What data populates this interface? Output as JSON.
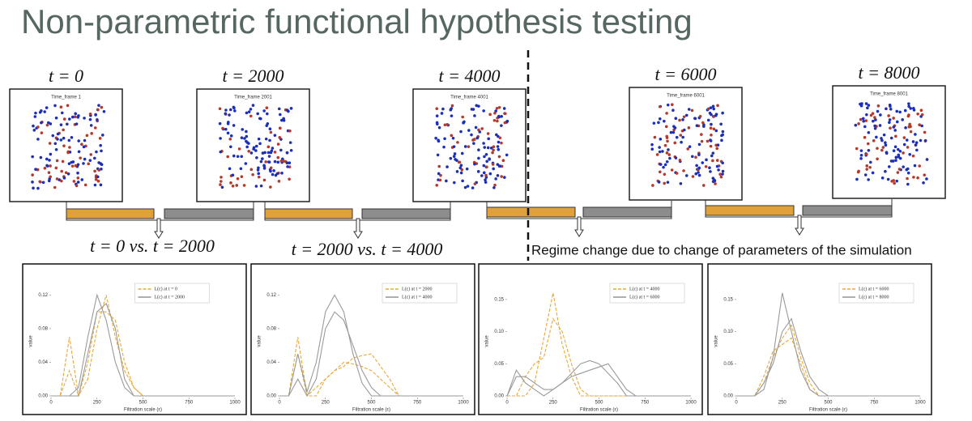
{
  "title": "Non-parametric functional hypothesis testing",
  "snapshots": [
    {
      "label": "t = 0",
      "subtitle": "Time_frame 1"
    },
    {
      "label": "t = 2000",
      "subtitle": "Time_frame 2001"
    },
    {
      "label": "t = 4000",
      "subtitle": "Time_frame 4001"
    },
    {
      "label": "t = 6000",
      "subtitle": "Time_frame 6001"
    },
    {
      "label": "t = 8000",
      "subtitle": "Time_frame 8001"
    }
  ],
  "comparisons": [
    "t = 0 vs. t = 2000",
    "t = 2000 vs. t = 4000"
  ],
  "regime_note": "Regime change due to change of parameters of the simulation",
  "chart_data": [
    {
      "type": "line",
      "xlabel": "Filtration scale (ε)",
      "ylabel": "value",
      "legend": "upper center",
      "x": [
        0,
        50,
        100,
        150,
        200,
        250,
        300,
        350,
        400,
        450,
        500,
        550,
        600,
        650,
        700,
        1000
      ],
      "xlim": [
        0,
        1000
      ],
      "xticks": [
        0,
        250,
        500,
        750,
        1000
      ],
      "ylim": [
        0,
        0.13
      ],
      "yticks": [
        {
          "value": 0,
          "label": "0.00"
        },
        {
          "value": 0.04,
          "label": "0.04"
        },
        {
          "value": 0.08,
          "label": "0.08"
        },
        {
          "value": 0.12,
          "label": "0.12"
        }
      ],
      "series": [
        {
          "name": "L(ε) at t = 0",
          "color": "#e8a838",
          "dashed": true,
          "curves": [
            [
              0,
              0,
              0.07,
              0,
              0.02,
              0.08,
              0.12,
              0.07,
              0.03,
              0.01,
              0,
              0,
              0,
              0,
              0,
              0
            ],
            [
              0,
              0,
              0.03,
              0,
              0.04,
              0.1,
              0.1,
              0.09,
              0.04,
              0.01,
              0,
              0,
              0,
              0,
              0,
              0
            ]
          ]
        },
        {
          "name": "L(ε) at t = 2000",
          "color": "#9a9a9a",
          "dashed": false,
          "curves": [
            [
              0,
              0,
              0,
              0.01,
              0.07,
              0.12,
              0.09,
              0.04,
              0.01,
              0,
              0,
              0,
              0,
              0,
              0,
              0
            ],
            [
              0,
              0,
              0,
              0,
              0.05,
              0.1,
              0.11,
              0.08,
              0.02,
              0,
              0,
              0,
              0,
              0,
              0,
              0
            ]
          ]
        }
      ]
    },
    {
      "type": "line",
      "xlabel": "Filtration scale (ε)",
      "ylabel": "value",
      "legend": "upper right",
      "x": [
        0,
        50,
        100,
        150,
        200,
        250,
        300,
        350,
        400,
        450,
        500,
        550,
        600,
        650,
        700,
        1000
      ],
      "xlim": [
        0,
        1000
      ],
      "xticks": [
        0,
        250,
        500,
        750,
        1000
      ],
      "ylim": [
        0,
        0.13
      ],
      "yticks": [
        {
          "value": 0,
          "label": "0.00"
        },
        {
          "value": 0.04,
          "label": "0.04"
        },
        {
          "value": 0.08,
          "label": "0.08"
        },
        {
          "value": 0.12,
          "label": "0.12"
        }
      ],
      "series": [
        {
          "name": "L(ε) at t = 2000",
          "color": "#e8a838",
          "dashed": true,
          "curves": [
            [
              0,
              0,
              0.07,
              0,
              0.01,
              0.02,
              0.03,
              0.035,
              0.045,
              0.048,
              0.05,
              0.035,
              0.02,
              0,
              0,
              0
            ],
            [
              0,
              0,
              0.05,
              0,
              0,
              0.02,
              0.03,
              0.04,
              0.038,
              0.035,
              0.03,
              0.02,
              0.01,
              0,
              0,
              0
            ]
          ]
        },
        {
          "name": "L(ε) at t = 4000",
          "color": "#9a9a9a",
          "dashed": false,
          "curves": [
            [
              0,
              0,
              0.05,
              0.005,
              0.04,
              0.1,
              0.12,
              0.1,
              0.05,
              0.015,
              0,
              0,
              0,
              0,
              0,
              0
            ],
            [
              0,
              0,
              0.02,
              0,
              0.02,
              0.08,
              0.1,
              0.09,
              0.06,
              0.03,
              0.01,
              0,
              0,
              0,
              0,
              0
            ]
          ]
        }
      ]
    },
    {
      "type": "line",
      "xlabel": "Filtration scale (ε)",
      "ylabel": "value",
      "legend": "upper right",
      "x": [
        0,
        50,
        100,
        150,
        200,
        250,
        300,
        350,
        400,
        450,
        500,
        550,
        600,
        650,
        700,
        1000
      ],
      "xlim": [
        0,
        1000
      ],
      "xticks": [
        0,
        250,
        500,
        750,
        1000
      ],
      "ylim": [
        0,
        0.17
      ],
      "yticks": [
        {
          "value": 0,
          "label": "0.00"
        },
        {
          "value": 0.05,
          "label": "0.05"
        },
        {
          "value": 0.1,
          "label": "0.10"
        },
        {
          "value": 0.15,
          "label": "0.15"
        }
      ],
      "series": [
        {
          "name": "L(ε) at t = 4000",
          "color": "#e8a838",
          "dashed": true,
          "curves": [
            [
              0,
              0,
              0,
              0.02,
              0.09,
              0.16,
              0.08,
              0.03,
              0,
              0,
              0,
              0,
              0,
              0,
              0,
              0
            ],
            [
              0,
              0,
              0.03,
              0.05,
              0.06,
              0.12,
              0.1,
              0.05,
              0.01,
              0,
              0,
              0,
              0,
              0,
              0,
              0
            ]
          ]
        },
        {
          "name": "L(ε) at t = 6000",
          "color": "#9a9a9a",
          "dashed": false,
          "curves": [
            [
              0,
              0.04,
              0.02,
              0.01,
              0,
              0.01,
              0.02,
              0.035,
              0.05,
              0.055,
              0.05,
              0.035,
              0.02,
              0,
              0,
              0
            ],
            [
              0,
              0.03,
              0.03,
              0.02,
              0.01,
              0.01,
              0.02,
              0.03,
              0.035,
              0.04,
              0.045,
              0.05,
              0.03,
              0.01,
              0,
              0
            ]
          ]
        }
      ]
    },
    {
      "type": "line",
      "xlabel": "Filtration scale (ε)",
      "ylabel": "value",
      "legend": "upper right",
      "x": [
        0,
        50,
        100,
        150,
        200,
        250,
        300,
        350,
        400,
        450,
        500,
        550,
        600,
        650,
        700,
        1000
      ],
      "xlim": [
        0,
        1000
      ],
      "xticks": [
        0,
        250,
        500,
        750,
        1000
      ],
      "ylim": [
        0,
        0.17
      ],
      "yticks": [
        {
          "value": 0,
          "label": "0.00"
        },
        {
          "value": 0.05,
          "label": "0.05"
        },
        {
          "value": 0.1,
          "label": "0.10"
        },
        {
          "value": 0.15,
          "label": "0.15"
        }
      ],
      "series": [
        {
          "name": "L(ε) at t = 6000",
          "color": "#e8a838",
          "dashed": true,
          "curves": [
            [
              0,
              0,
              0,
              0.02,
              0.06,
              0.09,
              0.11,
              0.06,
              0.02,
              0,
              0,
              0,
              0,
              0,
              0,
              0
            ],
            [
              0,
              0,
              0,
              0.03,
              0.07,
              0.08,
              0.09,
              0.05,
              0.01,
              0,
              0,
              0,
              0,
              0,
              0,
              0
            ]
          ]
        },
        {
          "name": "L(ε) at t = 8000",
          "color": "#9a9a9a",
          "dashed": false,
          "curves": [
            [
              0,
              0,
              0,
              0.01,
              0.06,
              0.16,
              0.1,
              0.04,
              0.01,
              0,
              0,
              0,
              0,
              0,
              0,
              0
            ],
            [
              0,
              0,
              0,
              0.02,
              0.05,
              0.1,
              0.12,
              0.07,
              0.03,
              0.01,
              0,
              0,
              0,
              0,
              0,
              0
            ]
          ]
        }
      ]
    }
  ]
}
